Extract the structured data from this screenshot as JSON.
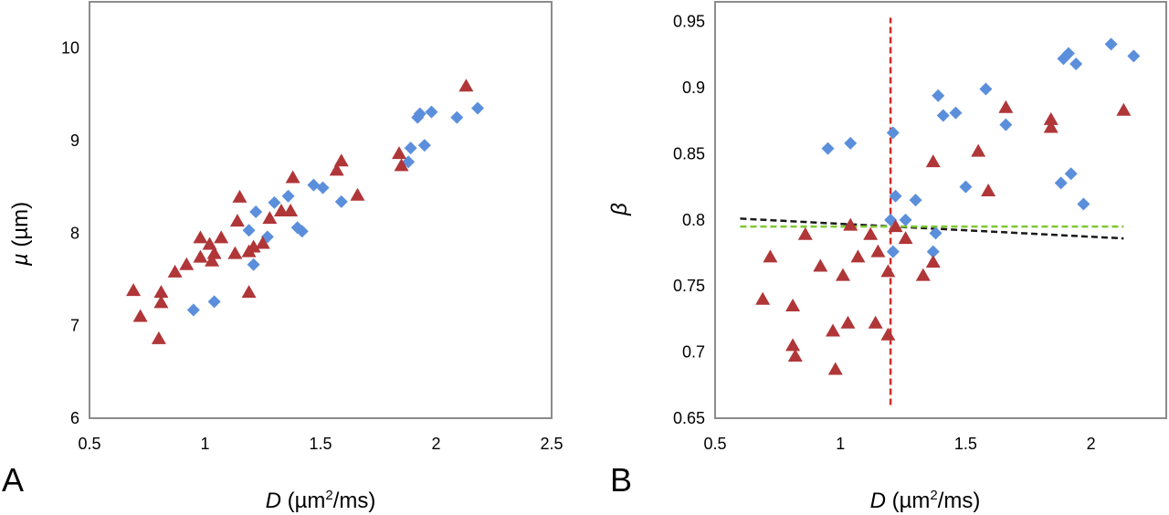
{
  "chart_data": [
    {
      "type": "scatter",
      "panel_label": "A",
      "xlabel": "D (µm²/ms)",
      "xlabel_parts": {
        "symbol": "D",
        "unit_pre": " (µm",
        "sup": "2",
        "unit_post": "/ms)"
      },
      "ylabel": "µ (µm)",
      "ylabel_parts": {
        "symbol": "µ",
        "unit": " (µm)"
      },
      "xlim": [
        0.5,
        2.5
      ],
      "ylim": [
        6,
        10.5
      ],
      "xticks": [
        0.5,
        1,
        1.5,
        2,
        2.5
      ],
      "xtick_labels": [
        "0.5",
        "1",
        "1.5",
        "2",
        "2.5"
      ],
      "yticks": [
        6,
        7,
        8,
        9,
        10
      ],
      "ytick_labels": [
        "6",
        "7",
        "8",
        "9",
        "10"
      ],
      "grid": false,
      "legend": false,
      "series": [
        {
          "marker": "diamond",
          "color": "#5b8fdc",
          "points": [
            [
              0.95,
              7.17
            ],
            [
              1.04,
              7.26
            ],
            [
              1.19,
              8.03
            ],
            [
              1.21,
              7.66
            ],
            [
              1.22,
              8.23
            ],
            [
              1.27,
              7.96
            ],
            [
              1.3,
              8.33
            ],
            [
              1.36,
              8.4
            ],
            [
              1.4,
              8.06
            ],
            [
              1.42,
              8.02
            ],
            [
              1.47,
              8.52
            ],
            [
              1.51,
              8.49
            ],
            [
              1.59,
              8.34
            ],
            [
              1.88,
              8.77
            ],
            [
              1.89,
              8.92
            ],
            [
              1.93,
              9.29
            ],
            [
              1.92,
              9.25
            ],
            [
              1.95,
              8.95
            ],
            [
              1.98,
              9.31
            ],
            [
              2.09,
              9.25
            ],
            [
              2.18,
              9.35
            ]
          ]
        },
        {
          "marker": "triangle",
          "color": "#b03638",
          "points": [
            [
              0.69,
              7.38
            ],
            [
              0.72,
              7.1
            ],
            [
              0.81,
              7.36
            ],
            [
              0.81,
              7.25
            ],
            [
              0.8,
              6.86
            ],
            [
              0.87,
              7.58
            ],
            [
              0.92,
              7.66
            ],
            [
              0.98,
              7.74
            ],
            [
              0.98,
              7.95
            ],
            [
              1.02,
              7.88
            ],
            [
              1.03,
              7.7
            ],
            [
              1.04,
              7.78
            ],
            [
              1.07,
              7.95
            ],
            [
              1.13,
              7.78
            ],
            [
              1.14,
              8.13
            ],
            [
              1.15,
              8.39
            ],
            [
              1.19,
              7.36
            ],
            [
              1.19,
              7.8
            ],
            [
              1.21,
              7.85
            ],
            [
              1.25,
              7.89
            ],
            [
              1.28,
              8.16
            ],
            [
              1.33,
              8.24
            ],
            [
              1.37,
              8.24
            ],
            [
              1.38,
              8.6
            ],
            [
              1.57,
              8.68
            ],
            [
              1.59,
              8.78
            ],
            [
              1.66,
              8.41
            ],
            [
              1.84,
              8.86
            ],
            [
              1.85,
              8.73
            ],
            [
              2.13,
              9.59
            ]
          ]
        }
      ]
    },
    {
      "type": "scatter",
      "panel_label": "B",
      "xlabel": "D (µm²/ms)",
      "xlabel_parts": {
        "symbol": "D",
        "unit_pre": " (µm",
        "sup": "2",
        "unit_post": "/ms)"
      },
      "ylabel": "β",
      "ylabel_parts": {
        "symbol": "β",
        "unit": ""
      },
      "xlim": [
        0.5,
        2.3
      ],
      "ylim": [
        0.65,
        0.965
      ],
      "xticks": [
        0.5,
        1,
        1.5,
        2
      ],
      "xtick_labels": [
        "0.5",
        "1",
        "1.5",
        "2"
      ],
      "yticks": [
        0.65,
        0.7,
        0.75,
        0.8,
        0.85,
        0.9,
        0.95
      ],
      "ytick_labels": [
        "0.65",
        "0.7",
        "0.75",
        "0.8",
        "0.85",
        "0.9",
        "0.95"
      ],
      "grid": false,
      "legend": false,
      "series": [
        {
          "marker": "diamond",
          "color": "#5b8fdc",
          "points": [
            [
              0.95,
              0.854
            ],
            [
              1.04,
              0.858
            ],
            [
              1.2,
              0.8
            ],
            [
              1.21,
              0.776
            ],
            [
              1.21,
              0.866
            ],
            [
              1.22,
              0.818
            ],
            [
              1.26,
              0.8
            ],
            [
              1.3,
              0.815
            ],
            [
              1.37,
              0.776
            ],
            [
              1.38,
              0.79
            ],
            [
              1.39,
              0.894
            ],
            [
              1.41,
              0.879
            ],
            [
              1.46,
              0.881
            ],
            [
              1.5,
              0.825
            ],
            [
              1.58,
              0.899
            ],
            [
              1.66,
              0.872
            ],
            [
              1.88,
              0.828
            ],
            [
              1.89,
              0.922
            ],
            [
              1.91,
              0.926
            ],
            [
              1.92,
              0.835
            ],
            [
              1.94,
              0.918
            ],
            [
              1.97,
              0.812
            ],
            [
              2.08,
              0.933
            ],
            [
              2.17,
              0.924
            ]
          ]
        },
        {
          "marker": "triangle",
          "color": "#b03638",
          "points": [
            [
              0.69,
              0.74
            ],
            [
              0.72,
              0.772
            ],
            [
              0.81,
              0.705
            ],
            [
              0.81,
              0.735
            ],
            [
              0.82,
              0.697
            ],
            [
              0.86,
              0.789
            ],
            [
              0.92,
              0.765
            ],
            [
              0.97,
              0.716
            ],
            [
              0.98,
              0.687
            ],
            [
              1.01,
              0.758
            ],
            [
              1.03,
              0.722
            ],
            [
              1.04,
              0.796
            ],
            [
              1.07,
              0.772
            ],
            [
              1.12,
              0.789
            ],
            [
              1.14,
              0.722
            ],
            [
              1.15,
              0.776
            ],
            [
              1.19,
              0.761
            ],
            [
              1.19,
              0.713
            ],
            [
              1.22,
              0.795
            ],
            [
              1.26,
              0.786
            ],
            [
              1.33,
              0.758
            ],
            [
              1.37,
              0.844
            ],
            [
              1.37,
              0.768
            ],
            [
              1.55,
              0.852
            ],
            [
              1.59,
              0.822
            ],
            [
              1.66,
              0.885
            ],
            [
              1.84,
              0.87
            ],
            [
              1.84,
              0.876
            ],
            [
              2.13,
              0.883
            ]
          ]
        }
      ],
      "lines": [
        {
          "style": "dashed",
          "color": "#d42a2a",
          "orientation": "vertical",
          "x": 1.2,
          "y_range": [
            0.66,
            0.953
          ]
        },
        {
          "style": "dashed",
          "color": "#1a1a1a",
          "orientation": "trend",
          "from": [
            0.6,
            0.801
          ],
          "to": [
            2.13,
            0.786
          ]
        },
        {
          "style": "dashed",
          "color": "#7dc832",
          "orientation": "horizontal",
          "y": 0.795,
          "x_range": [
            0.6,
            2.13
          ]
        }
      ]
    }
  ]
}
